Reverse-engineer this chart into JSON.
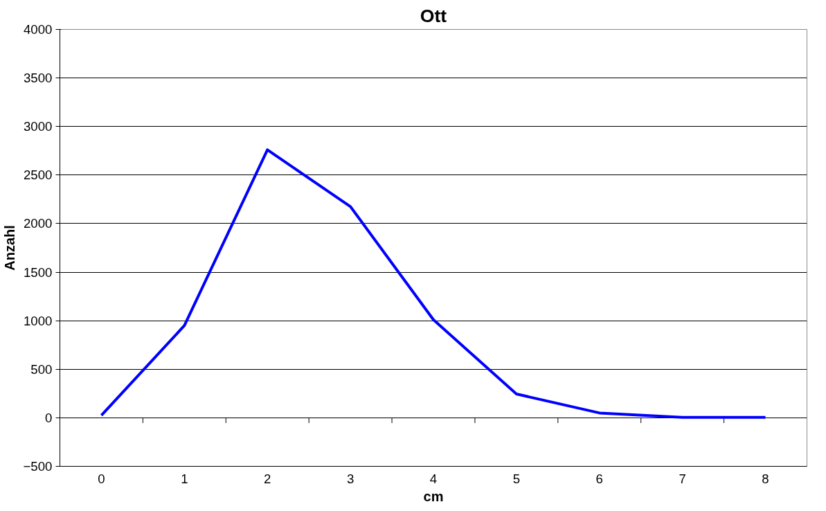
{
  "chart_data": {
    "type": "line",
    "title": "Ott",
    "xlabel": "cm",
    "ylabel": "Anzahl",
    "categories": [
      "0",
      "1",
      "2",
      "3",
      "4",
      "5",
      "6",
      "7",
      "8"
    ],
    "series": [
      {
        "color": "#0000ff",
        "values": [
          25,
          950,
          2760,
          2175,
          1010,
          245,
          50,
          5,
          5
        ]
      }
    ],
    "ylim": [
      -500,
      4000
    ],
    "yticks": [
      -500,
      0,
      500,
      1000,
      1500,
      2000,
      2500,
      3000,
      3500,
      4000
    ],
    "grid": "y",
    "marker": "none",
    "line_style": "solid"
  }
}
